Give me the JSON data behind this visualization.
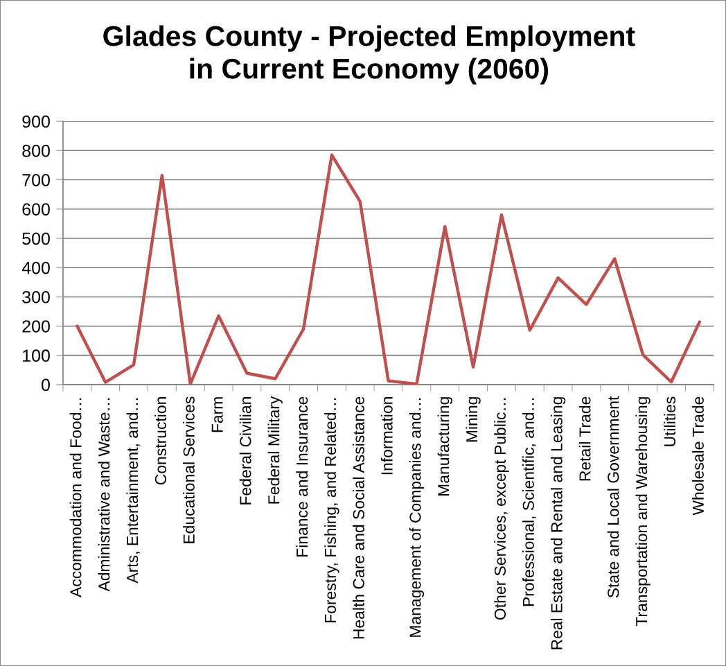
{
  "chart_data": {
    "type": "line",
    "title": "Glades County - Projected Employment\nin Current Economy (2060)",
    "categories": [
      "Accommodation and Food…",
      "Administrative and Waste…",
      "Arts, Entertainment, and…",
      "Construction",
      "Educational Services",
      "Farm",
      "Federal Civilian",
      "Federal Military",
      "Finance and Insurance",
      "Forestry, Fishing, and Related…",
      "Health Care and Social Assistance",
      "Information",
      "Management of Companies and…",
      "Manufacturing",
      "Mining",
      "Other Services, except Public…",
      "Professional, Scientific, and…",
      "Real Estate and Rental and Leasing",
      "Retail Trade",
      "State and Local Government",
      "Transportation and Warehousing",
      "Utilities",
      "Wholesale Trade"
    ],
    "series": [
      {
        "color": "#c0504d",
        "values": [
          200,
          8,
          68,
          715,
          2,
          235,
          39,
          20,
          190,
          785,
          626,
          13,
          2,
          540,
          60,
          580,
          186,
          365,
          274,
          430,
          102,
          9,
          214
        ]
      }
    ],
    "ylim": [
      0,
      900
    ],
    "yticks": [
      0,
      100,
      200,
      300,
      400,
      500,
      600,
      700,
      800,
      900
    ],
    "grid": "y",
    "marker": "none",
    "line_style": "solid"
  }
}
